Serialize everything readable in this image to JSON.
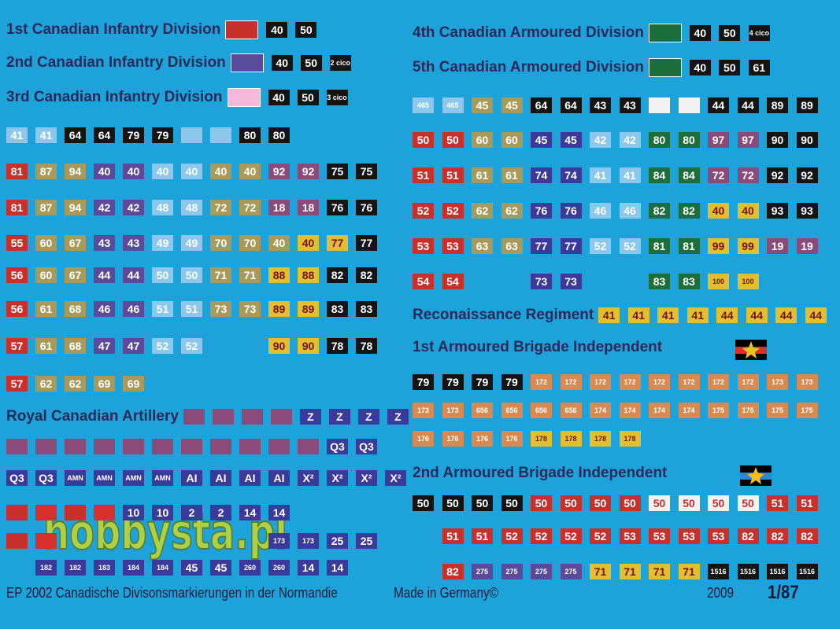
{
  "palette": {
    "k": [
      "#141414",
      "#ffffff"
    ],
    "r": [
      "#c8302c",
      "#ffffff"
    ],
    "o": [
      "#a89a5a",
      "#ffffff"
    ],
    "p": [
      "#5a4a9a",
      "#ffffff"
    ],
    "l": [
      "#8cc8ec",
      "#ffffff"
    ],
    "w": [
      "#f2f2f2",
      "#c8302c"
    ],
    "g": [
      "#1c6e3a",
      "#ffffff"
    ],
    "m": [
      "#8a4a7a",
      "#ffffff"
    ],
    "y": [
      "#e0c030",
      "#7a1010"
    ],
    "q": [
      "#3a3a9a",
      "#ffffff"
    ],
    "e": [
      "#d88a50",
      "#ffffff"
    ],
    "f": [
      "#d8302c",
      "#ffe040"
    ],
    "n": [
      "#f4b8d8",
      "#ffffff"
    ]
  },
  "left": [
    {
      "title": "1st Canadian Infantry Division",
      "swatch": "r",
      "items": [
        "40",
        "50"
      ],
      "colors": "kk"
    },
    {
      "title": "2nd Canadian Infantry Division",
      "swatch": "p",
      "items": [
        "40",
        "50",
        "2 cico"
      ],
      "colors": "kkk"
    },
    {
      "title": "3rd Canadian Infantry Division",
      "swatch": "n",
      "items": [
        "40",
        "50",
        "3 cico"
      ],
      "colors": "kkk"
    },
    {
      "items": [
        "41",
        "41",
        "64",
        "64",
        "79",
        "79",
        null,
        null,
        "80",
        "80"
      ],
      "colors": "llkkkkllkk"
    },
    {
      "items": [
        "81",
        "87",
        "94",
        "40",
        "40",
        "40",
        "40",
        "40",
        "40",
        "92",
        "92",
        "75",
        "75"
      ],
      "colors": "roopplloommkk"
    },
    {
      "items": [
        "81",
        "87",
        "94",
        "42",
        "42",
        "48",
        "48",
        "72",
        "72",
        "18",
        "18",
        "76",
        "76"
      ],
      "colors": "roopplloommkk"
    },
    {
      "items": [
        "55",
        "60",
        "67",
        "43",
        "43",
        "49",
        "49",
        "70",
        "70",
        "40",
        "40",
        "77",
        "77"
      ],
      "colors": "roopplloooyykk"
    },
    {
      "items": [
        "56",
        "60",
        "67",
        "44",
        "44",
        "50",
        "50",
        "71",
        "71",
        "88",
        "88",
        "82",
        "82"
      ],
      "colors": "rooppllooyykk"
    },
    {
      "items": [
        "56",
        "61",
        "68",
        "46",
        "46",
        "51",
        "51",
        "73",
        "73",
        "89",
        "89",
        "83",
        "83"
      ],
      "colors": "rooppllooyykk"
    },
    {
      "items": [
        "57",
        "61",
        "68",
        "47",
        "47",
        "52",
        "52",
        null,
        null,
        "90",
        "90",
        "78",
        "78"
      ],
      "colors": "rooppll--yykk"
    },
    {
      "items": [
        "57",
        "62",
        "62",
        "69",
        "69"
      ],
      "colors": "roooo"
    },
    {
      "title": "Royal Canadian Artillery",
      "items": [
        null,
        null,
        null,
        null,
        "Z",
        "Z",
        "Z",
        "Z"
      ],
      "colors": "mmmmqqqq"
    },
    {
      "items": [
        null,
        null,
        null,
        null,
        null,
        null,
        null,
        null,
        null,
        null,
        null,
        "Q3",
        "Q3"
      ],
      "colors": "mmmmmmmmmmmqq"
    },
    {
      "items": [
        "Q3",
        "Q3",
        "AMN",
        "AMN",
        "AMN",
        "AMN",
        "AI",
        "AI",
        "AI",
        "AI",
        "X²",
        "X²",
        "X²",
        "X²"
      ],
      "colors": "qqqqqqqqqqqqqq"
    },
    {
      "items": [
        null,
        null,
        null,
        null,
        "10",
        "10",
        "2",
        "2",
        "14",
        "14"
      ],
      "colors": "rfrfqqqqqq"
    },
    {
      "items": [
        null,
        null,
        null,
        null,
        null,
        null,
        null,
        null,
        null,
        "173",
        "173",
        "25",
        "25"
      ],
      "colors": "rf-------qqqq"
    },
    {
      "items": [
        null,
        "182",
        "182",
        "183",
        "184",
        "184",
        "45",
        "45",
        "260",
        "260",
        "14",
        "14"
      ],
      "colors": "-qqqqqqqqqqq"
    }
  ],
  "right": [
    {
      "title": "4th Canadian Armoured Division",
      "swatch": "g",
      "items": [
        "40",
        "50",
        "4 cico"
      ],
      "colors": "kkk"
    },
    {
      "title": "5th Canadian Armoured Division",
      "swatch": "g",
      "items": [
        "40",
        "50",
        "61"
      ],
      "colors": "kkk"
    },
    {
      "items": [
        "465",
        "465",
        "45",
        "45",
        "64",
        "64",
        "43",
        "43",
        null,
        null,
        "44",
        "44",
        "89",
        "89"
      ],
      "colors": "llookkkkwwkkkk"
    },
    {
      "items": [
        "50",
        "50",
        "60",
        "60",
        "45",
        "45",
        "42",
        "42",
        "80",
        "80",
        "97",
        "97",
        "90",
        "90"
      ],
      "colors": "rrooqqllggmmkk"
    },
    {
      "items": [
        "51",
        "51",
        "61",
        "61",
        "74",
        "74",
        "41",
        "41",
        "84",
        "84",
        "72",
        "72",
        "92",
        "92"
      ],
      "colors": "rrooqqllggmmkk"
    },
    {
      "items": [
        "52",
        "52",
        "62",
        "62",
        "76",
        "76",
        "46",
        "46",
        "82",
        "82",
        "40",
        "40",
        "93",
        "93"
      ],
      "colors": "rrooqqllggyykk"
    },
    {
      "items": [
        "53",
        "53",
        "63",
        "63",
        "77",
        "77",
        "52",
        "52",
        "81",
        "81",
        "99",
        "99",
        "19",
        "19"
      ],
      "colors": "rrooqqllggyymm"
    },
    {
      "items": [
        "54",
        "54",
        null,
        null,
        "73",
        "73",
        null,
        null,
        "83",
        "83",
        "100",
        "100"
      ],
      "colors": "rr--qq--ggyy"
    },
    {
      "title": "Reconaissance Regiment",
      "items": [
        "41",
        "41",
        "41",
        "41",
        "44",
        "44",
        "44",
        "44"
      ],
      "colors": "yyyyyyyy"
    },
    {
      "title": "1st  Armoured Brigade Independent",
      "items": [],
      "colors": ""
    },
    {
      "items": [
        "79",
        "79",
        "79",
        "79",
        "172",
        "172",
        "172",
        "172",
        "172",
        "172",
        "172",
        "172",
        "173",
        "173"
      ],
      "colors": "kkkkeeeeeeeeee"
    },
    {
      "items": [
        "173",
        "173",
        "656",
        "656",
        "656",
        "656",
        "174",
        "174",
        "174",
        "174",
        "175",
        "175",
        "175",
        "175"
      ],
      "colors": "eeeeeeeeeeeeee"
    },
    {
      "items": [
        "176",
        "176",
        "176",
        "176",
        "178",
        "178",
        "178",
        "178"
      ],
      "colors": "eeeeyyyy"
    },
    {
      "title": "2nd  Armoured Brigade Independent",
      "items": [],
      "colors": ""
    },
    {
      "items": [
        "50",
        "50",
        "50",
        "50",
        "50",
        "50",
        "50",
        "50",
        "50",
        "50",
        "50",
        "50",
        "51",
        "51"
      ],
      "colors": "kkkkrrrrwwwwrr"
    },
    {
      "items": [
        null,
        "51",
        "51",
        "52",
        "52",
        "52",
        "52",
        "53",
        "53",
        "53",
        "53",
        "82",
        "82",
        "82"
      ],
      "colors": "-rrrrrrrrrrrrr"
    },
    {
      "items": [
        null,
        "82",
        "275",
        "275",
        "275",
        "275",
        "71",
        "71",
        "71",
        "71",
        "1516",
        "1516",
        "1516",
        "1516"
      ],
      "colors": "-rppppyyyykkkk"
    }
  ],
  "footer": {
    "code": "EP 2002 Canadische Divisonsmarkierungen in der Normandie",
    "made": "Made in Germany©",
    "year": "2009",
    "scale": "1/87"
  },
  "watermark": "hobbysta.pl"
}
